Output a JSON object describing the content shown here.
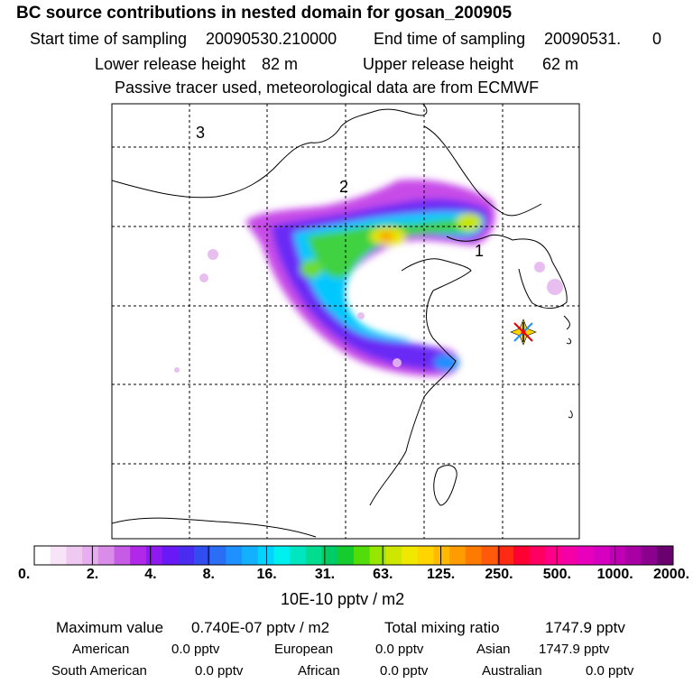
{
  "chart_data": {
    "type": "heatmap",
    "title": "BC  source contributions in nested domain for gosan_200905",
    "start_label": "Start time of sampling",
    "start_value": "20090530.210000",
    "end_label": "End time of sampling",
    "end_value": "20090531.",
    "end_value2": "0",
    "lower_label": "Lower release height",
    "lower_value": "82 m",
    "upper_label": "Upper release height",
    "upper_value": "62 m",
    "tracer_note": "Passive tracer used, meteorological data are from ECMWF",
    "region_labels": [
      "1",
      "2",
      "3"
    ],
    "colorbar": {
      "ticks": [
        "0.",
        "2.",
        "4.",
        "8.",
        "16.",
        "31.",
        "63.",
        "125.",
        "250.",
        "500.",
        "1000.",
        "2000."
      ],
      "unit": "10E-10 pptv / m2",
      "colors": [
        "#ffffff",
        "#f7e4f7",
        "#efc9f2",
        "#e6aef0",
        "#d98ce8",
        "#c65be6",
        "#b128e8",
        "#8f1af0",
        "#6a18f5",
        "#4a2bf0",
        "#2f4df0",
        "#2a6ef5",
        "#1e90ff",
        "#12b0ff",
        "#00d4ff",
        "#00f0ef",
        "#00e6c0",
        "#00dc90",
        "#00cc66",
        "#14cc2e",
        "#52dd0a",
        "#97e600",
        "#cfe600",
        "#f0e800",
        "#ffd400",
        "#ffba00",
        "#ff9c00",
        "#ff7b00",
        "#ff5a0a",
        "#ff2a14",
        "#ff0033",
        "#ff0060",
        "#ff008a",
        "#f500a6",
        "#e800bd",
        "#d600c0",
        "#c000b4",
        "#a800a4",
        "#8c008e",
        "#6a0070"
      ]
    },
    "maximum_label": "Maximum value",
    "maximum_value": "0.740E-07 pptv / m2",
    "total_label": "Total mixing ratio",
    "total_value": "1747.9 pptv",
    "contributions": [
      {
        "name": "American",
        "value": "0.0 pptv"
      },
      {
        "name": "European",
        "value": "0.0 pptv"
      },
      {
        "name": "Asian",
        "value": "1747.9 pptv"
      },
      {
        "name": "South American",
        "value": "0.0 pptv"
      },
      {
        "name": "African",
        "value": "0.0 pptv"
      },
      {
        "name": "Australian",
        "value": "0.0 pptv"
      }
    ]
  }
}
